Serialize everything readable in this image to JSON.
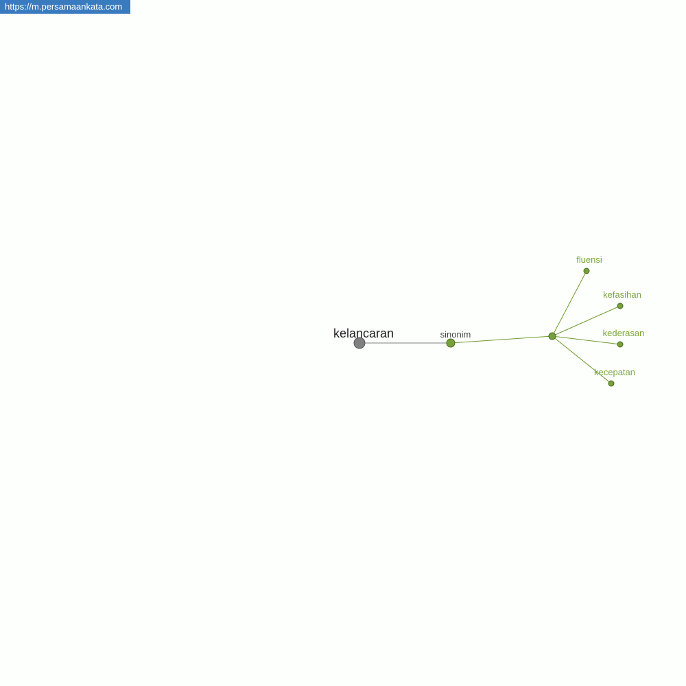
{
  "banner": {
    "url": "https://m.persamaankata.com"
  },
  "graph": {
    "root": {
      "label": "kelancaran",
      "color": "#808080"
    },
    "relation": {
      "label": "sinonim",
      "color": "#76a03c"
    },
    "hub": {
      "label": ""
    },
    "words": [
      "fluensi",
      "kefasihan",
      "kederasan",
      "kecepatan"
    ],
    "colors": {
      "root_text": "#222222",
      "relation_text": "#444444",
      "word_text": "#7aa63a",
      "edge_green": "#6e9a2a",
      "edge_gray": "#808080"
    }
  }
}
